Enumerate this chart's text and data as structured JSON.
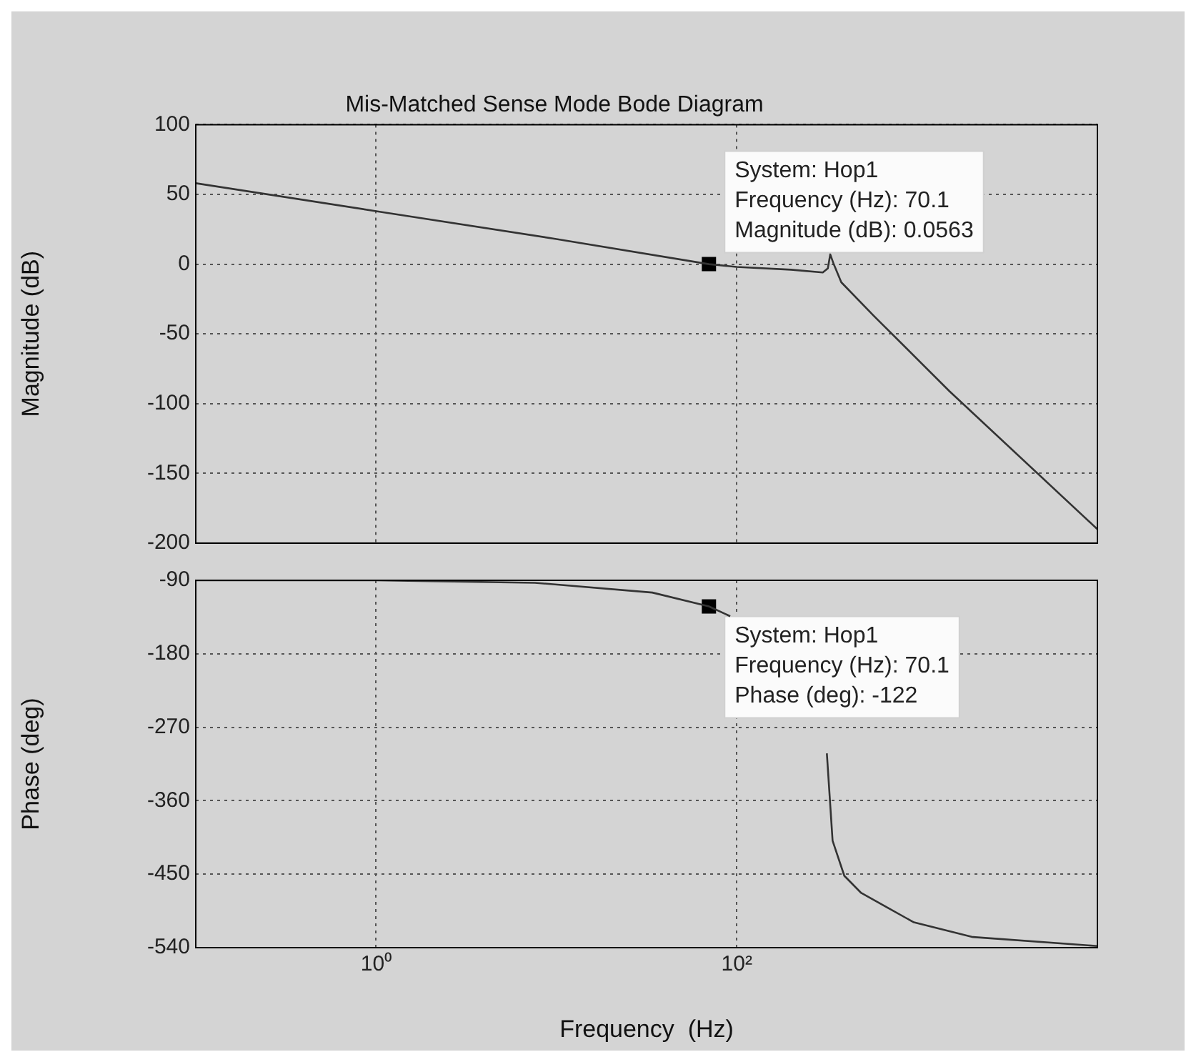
{
  "chart_data": [
    {
      "type": "line",
      "title": "Mis-Matched Sense Mode Bode Diagram",
      "ylabel": "Magnitude (dB)",
      "log": "x",
      "grid": true,
      "tick_labels": "y",
      "color": "#333333",
      "x": [
        0.1,
        1,
        10,
        70.1,
        100,
        200,
        300,
        320,
        330,
        345,
        380,
        575,
        1510,
        10000
      ],
      "values": [
        58,
        38,
        18,
        0,
        -2,
        -4,
        -6,
        -3,
        7,
        0,
        -13,
        -37,
        -91,
        -190
      ],
      "xlim": [
        0.1,
        10000
      ],
      "xticks": [
        1,
        100
      ],
      "ylim": [
        -200,
        100
      ],
      "yticks": [
        100,
        50,
        0,
        -50,
        -100,
        -150,
        -200
      ],
      "annotations": [
        {
          "text": "System: Hop1\nFrequency (Hz): 70.1\nMagnitude (dB): 0.0563",
          "x": 70.1,
          "y": 0.0563
        }
      ]
    },
    {
      "type": "line",
      "xlabel": "Frequency  (Hz)",
      "ylabel": "Phase (deg)",
      "log": "x",
      "grid": true,
      "color": "#333333",
      "x": [
        0.1,
        1,
        2,
        7.6,
        34,
        70.1,
        92,
        200,
        316,
        340,
        395,
        490,
        960,
        2040,
        10000
      ],
      "values": [
        -90,
        -90,
        -91,
        -93,
        -105,
        -122,
        -134,
        null,
        -302,
        -409,
        -452,
        -473,
        -509,
        -527,
        -538
      ],
      "xlim": [
        0.1,
        10000
      ],
      "xticks": [
        {
          "value": 1,
          "label": "10⁰"
        },
        {
          "value": 100,
          "label": "10²"
        }
      ],
      "ylim": [
        -540,
        -90
      ],
      "yticks": [
        -90,
        -180,
        -270,
        -360,
        -450,
        -540
      ],
      "annotations": [
        {
          "text": "System: Hop1\nFrequency (Hz): 70.1\nPhase (deg): -122",
          "x": 70.1,
          "y": -122
        }
      ]
    }
  ]
}
